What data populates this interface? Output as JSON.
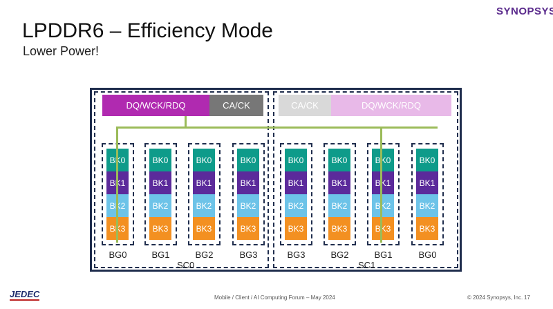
{
  "slide": {
    "title": "LPDDR6 – Efficiency Mode",
    "subtitle": "Lower Power!",
    "logo": "SYNOPSYS",
    "footer_center": "Mobile / Client / AI Computing Forum – May 2024",
    "footer_right": "© 2024 Synopsys, Inc.",
    "page": "17",
    "jedec_logo": "JEDEC"
  },
  "colors": {
    "dq_active": "#b02ab0",
    "ca_active": "#777777",
    "ca_inactive": "#d9d9d9",
    "dq_inactive": "#e8b9e8",
    "bk0": "#0e9b8a",
    "bk1": "#5b2a9b",
    "bk2": "#6dc3e8",
    "bk3": "#f39021",
    "bus": "#9bbb59",
    "border": "#1f2d4d"
  },
  "diagram": {
    "sc0": {
      "label": "SC0",
      "dq": "DQ/WCK/RDQ",
      "ca": "CA/CK",
      "bank_groups": [
        "BG0",
        "BG1",
        "BG2",
        "BG3"
      ]
    },
    "sc1": {
      "label": "SC1",
      "dq": "DQ/WCK/RDQ",
      "ca": "CA/CK",
      "bank_groups": [
        "BG3",
        "BG2",
        "BG1",
        "BG0"
      ]
    },
    "banks": [
      "BK0",
      "BK1",
      "BK2",
      "BK3"
    ]
  }
}
